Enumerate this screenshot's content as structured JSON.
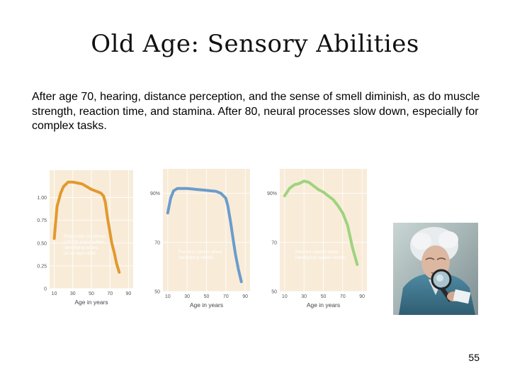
{
  "slide": {
    "title": "Old Age: Sensory Abilities",
    "body": "After age 70, hearing, distance perception, and the sense of smell diminish, as do muscle strength, reaction time, and stamina. After 80, neural processes slow down, especially for complex tasks.",
    "page_number": "55"
  },
  "photo": {
    "icon": "elderly-woman-magnifying-glass"
  },
  "chart_data": [
    {
      "type": "line",
      "xlabel": "Age in years",
      "ylabel": "",
      "x_ticks": [
        "10",
        "30",
        "50",
        "70",
        "90"
      ],
      "y_ticks": [
        "0",
        "0.25",
        "0.50",
        "0.75",
        "1.00"
      ],
      "xlim": [
        5,
        95
      ],
      "ylim": [
        0,
        1.3
      ],
      "annotation": [
        "Proportion of normal",
        "(20/20) vision when",
        "identifying letters",
        "on an eye chart"
      ],
      "color": "#e3992e",
      "series": [
        {
          "x": [
            10,
            13,
            17,
            20,
            25,
            30,
            35,
            40,
            45,
            50,
            55,
            60,
            63,
            65,
            67,
            70,
            72,
            75,
            77,
            80
          ],
          "values": [
            0.55,
            0.9,
            1.05,
            1.12,
            1.17,
            1.17,
            1.16,
            1.15,
            1.12,
            1.09,
            1.07,
            1.05,
            1.02,
            0.95,
            0.8,
            0.62,
            0.5,
            0.38,
            0.28,
            0.18
          ]
        }
      ]
    },
    {
      "type": "line",
      "xlabel": "Age in years",
      "ylabel": "",
      "x_ticks": [
        "10",
        "30",
        "50",
        "70",
        "90"
      ],
      "y_ticks": [
        "50",
        "70",
        "90%"
      ],
      "xlim": [
        5,
        95
      ],
      "ylim": [
        50,
        100
      ],
      "annotation": [
        "Percent correct when",
        "identifying smells"
      ],
      "color": "#6b9ccc",
      "series": [
        {
          "x": [
            10,
            13,
            16,
            20,
            25,
            30,
            35,
            40,
            45,
            50,
            55,
            60,
            65,
            70,
            72,
            75,
            78,
            80,
            83,
            86
          ],
          "values": [
            82,
            88,
            91,
            92,
            92,
            92,
            91.8,
            91.6,
            91.4,
            91.2,
            91,
            90.8,
            90,
            88,
            85,
            78,
            70,
            65,
            59,
            54
          ]
        }
      ]
    },
    {
      "type": "line",
      "xlabel": "Age in years",
      "ylabel": "",
      "x_ticks": [
        "10",
        "30",
        "50",
        "70",
        "90"
      ],
      "y_ticks": [
        "50",
        "70",
        "90%"
      ],
      "xlim": [
        5,
        95
      ],
      "ylim": [
        50,
        100
      ],
      "annotation": [
        "Percent correct when",
        "identifying spoken words"
      ],
      "color": "#9fd37e",
      "series": [
        {
          "x": [
            10,
            15,
            20,
            25,
            30,
            35,
            40,
            45,
            50,
            55,
            60,
            65,
            70,
            75,
            80,
            85
          ],
          "values": [
            89,
            92,
            93.5,
            94,
            95,
            94.5,
            93,
            91.5,
            90.5,
            89,
            87.5,
            85,
            82,
            77,
            68,
            61
          ]
        }
      ]
    }
  ]
}
